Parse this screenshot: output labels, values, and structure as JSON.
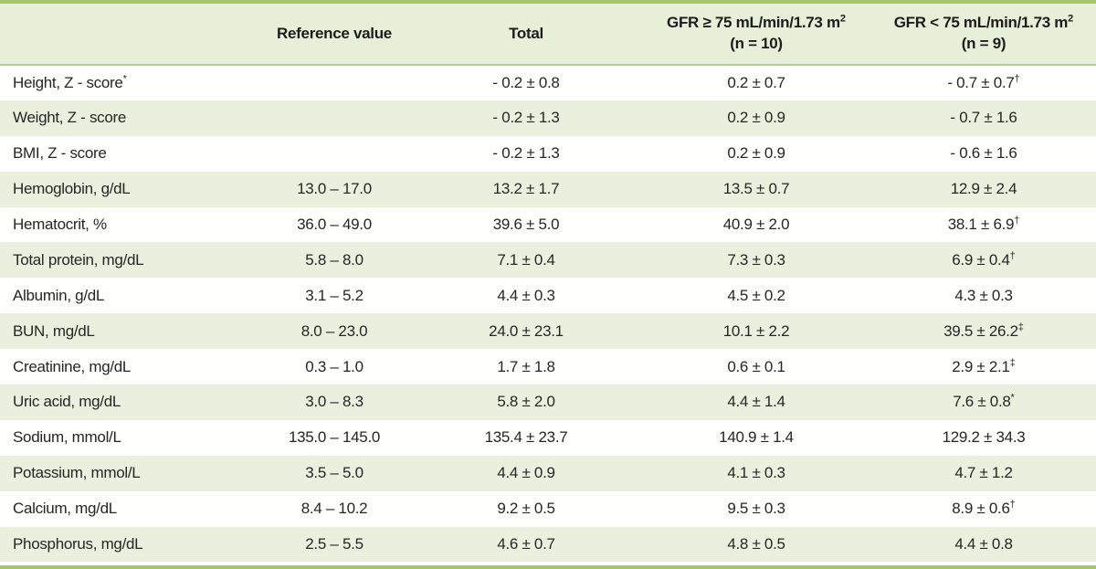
{
  "colors": {
    "border_green": "#a5c766",
    "header_rule_green": "#b4cf85",
    "header_bg": "#e8efd8",
    "row_green_bg": "#eaf0dd",
    "row_white_bg": "#fefefc",
    "text": "#262626"
  },
  "table": {
    "header": {
      "col_label": "",
      "col_reference": "Reference value",
      "col_total": "Total",
      "col_gfr_high": {
        "line1": "GFR ≥ 75 mL/min/1.73 m",
        "sup": "2",
        "line2": "(n = 10)"
      },
      "col_gfr_low": {
        "line1": "GFR < 75 mL/min/1.73 m",
        "sup": "2",
        "line2": "(n = 9)"
      }
    },
    "rows": [
      {
        "label": "Height, Z - score",
        "label_sup": "*",
        "reference": "",
        "total": "- 0.2 ± 0.8",
        "gfr_high": "0.2 ± 0.7",
        "gfr_low": "- 0.7 ± 0.7",
        "gfr_low_sup": "†"
      },
      {
        "label": "Weight, Z - score",
        "label_sup": "",
        "reference": "",
        "total": "- 0.2 ± 1.3",
        "gfr_high": "0.2 ± 0.9",
        "gfr_low": "- 0.7 ± 1.6",
        "gfr_low_sup": ""
      },
      {
        "label": "BMI, Z - score",
        "label_sup": "",
        "reference": "",
        "total": "- 0.2 ± 1.3",
        "gfr_high": "0.2 ± 0.9",
        "gfr_low": "- 0.6 ± 1.6",
        "gfr_low_sup": ""
      },
      {
        "label": "Hemoglobin, g/dL",
        "label_sup": "",
        "reference": "13.0 – 17.0",
        "total": "13.2 ± 1.7",
        "gfr_high": "13.5 ± 0.7",
        "gfr_low": "12.9 ± 2.4",
        "gfr_low_sup": ""
      },
      {
        "label": "Hematocrit, %",
        "label_sup": "",
        "reference": "36.0 – 49.0",
        "total": "39.6 ± 5.0",
        "gfr_high": "40.9 ± 2.0",
        "gfr_low": "38.1 ± 6.9",
        "gfr_low_sup": "†"
      },
      {
        "label": "Total protein, mg/dL",
        "label_sup": "",
        "reference": "5.8 – 8.0",
        "total": "7.1 ± 0.4",
        "gfr_high": "7.3 ± 0.3",
        "gfr_low": "6.9 ± 0.4",
        "gfr_low_sup": "†"
      },
      {
        "label": "Albumin, g/dL",
        "label_sup": "",
        "reference": "3.1 – 5.2",
        "total": "4.4 ± 0.3",
        "gfr_high": "4.5 ± 0.2",
        "gfr_low": "4.3 ± 0.3",
        "gfr_low_sup": ""
      },
      {
        "label": "BUN, mg/dL",
        "label_sup": "",
        "reference": "8.0 – 23.0",
        "total": "24.0 ± 23.1",
        "gfr_high": "10.1 ± 2.2",
        "gfr_low": "39.5 ± 26.2",
        "gfr_low_sup": "‡"
      },
      {
        "label": "Creatinine, mg/dL",
        "label_sup": "",
        "reference": "0.3 – 1.0",
        "total": "1.7 ± 1.8",
        "gfr_high": "0.6 ± 0.1",
        "gfr_low": "2.9 ± 2.1",
        "gfr_low_sup": "‡"
      },
      {
        "label": "Uric acid, mg/dL",
        "label_sup": "",
        "reference": "3.0 – 8.3",
        "total": "5.8 ± 2.0",
        "gfr_high": "4.4 ± 1.4",
        "gfr_low": "7.6 ± 0.8",
        "gfr_low_sup": "*"
      },
      {
        "label": "Sodium, mmol/L",
        "label_sup": "",
        "reference": "135.0 – 145.0",
        "total": "135.4 ± 23.7",
        "gfr_high": "140.9 ± 1.4",
        "gfr_low": "129.2 ± 34.3",
        "gfr_low_sup": ""
      },
      {
        "label": "Potassium, mmol/L",
        "label_sup": "",
        "reference": "3.5 – 5.0",
        "total": "4.4 ± 0.9",
        "gfr_high": "4.1 ± 0.3",
        "gfr_low": "4.7 ± 1.2",
        "gfr_low_sup": ""
      },
      {
        "label": "Calcium, mg/dL",
        "label_sup": "",
        "reference": "8.4 – 10.2",
        "total": "9.2 ± 0.5",
        "gfr_high": "9.5 ± 0.3",
        "gfr_low": "8.9 ± 0.6",
        "gfr_low_sup": "†"
      },
      {
        "label": "Phosphorus, mg/dL",
        "label_sup": "",
        "reference": "2.5 – 5.5",
        "total": "4.6 ± 0.7",
        "gfr_high": "4.8 ± 0.5",
        "gfr_low": "4.4 ± 0.8",
        "gfr_low_sup": ""
      }
    ]
  }
}
